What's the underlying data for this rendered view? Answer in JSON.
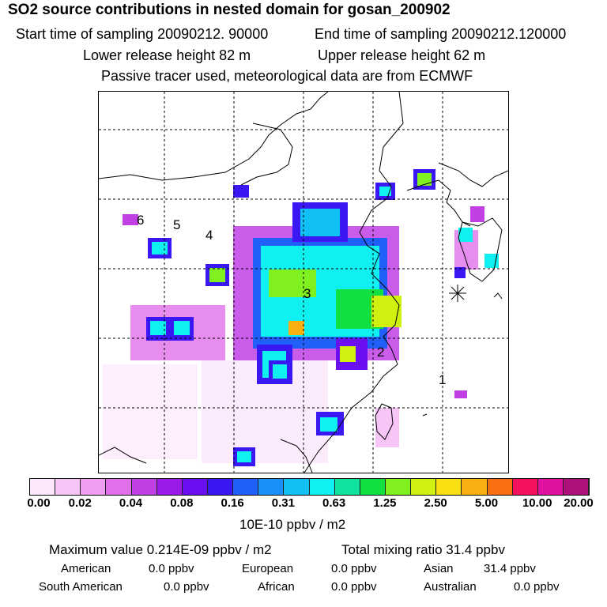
{
  "header": {
    "title": "SO2 source contributions in nested domain for gosan_200902",
    "start": "Start time of sampling 20090212. 90000",
    "end": "End time of sampling 20090212.120000",
    "lower": "Lower release height   82 m",
    "upper": "Upper release height   62 m",
    "note": "Passive tracer used, meteorological data are from ECMWF"
  },
  "map": {
    "receptor_labels": [
      "1",
      "2",
      "3",
      "4",
      "5",
      "6"
    ],
    "gridlines": "dashed"
  },
  "colorbar": {
    "colors": [
      "#fde7fd",
      "#f7c6f7",
      "#ef9fef",
      "#e070ea",
      "#c040e4",
      "#9a1ae8",
      "#6a10f0",
      "#3a18f4",
      "#2060f8",
      "#1890f8",
      "#10c0f4",
      "#10f0f0",
      "#10e0a0",
      "#10e040",
      "#80f020",
      "#d0f010",
      "#f8e010",
      "#f8b010",
      "#f87010",
      "#f81060",
      "#e010a0",
      "#b0107a"
    ],
    "tick_labels": [
      "0.00",
      "0.02",
      "0.04",
      "0.08",
      "0.16",
      "0.31",
      "0.63",
      "1.25",
      "2.50",
      "5.00",
      "10.00",
      "20.00"
    ],
    "units": "10E-10 ppbv / m2"
  },
  "summary": {
    "max_value": "Maximum value  0.214E-09 ppbv / m2",
    "total": "Total mixing ratio       31.4 ppbv",
    "regions": [
      {
        "name": "American",
        "value": "0.0 ppbv"
      },
      {
        "name": "European",
        "value": "0.0 ppbv"
      },
      {
        "name": "Asian",
        "value": "31.4 ppbv"
      },
      {
        "name": "South American",
        "value": "0.0 ppbv"
      },
      {
        "name": "African",
        "value": "0.0 ppbv"
      },
      {
        "name": "Australian",
        "value": "0.0 ppbv"
      }
    ]
  }
}
